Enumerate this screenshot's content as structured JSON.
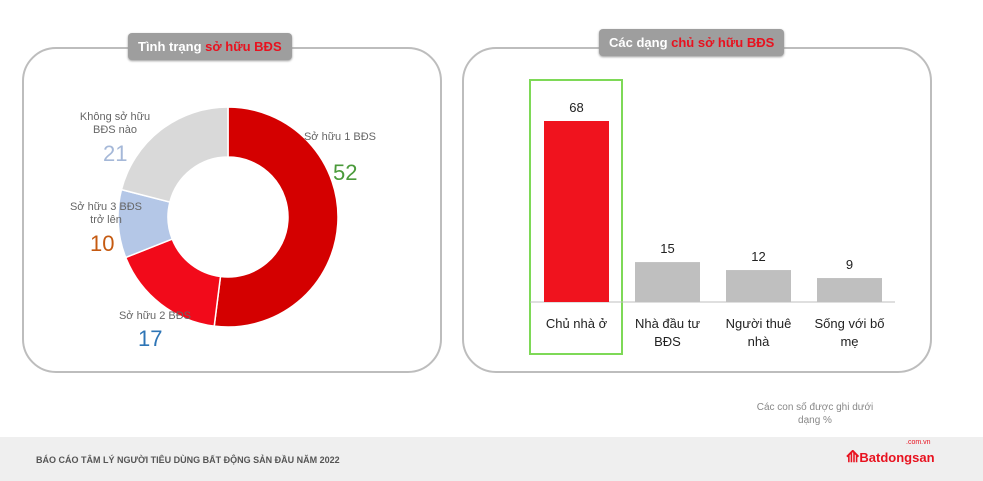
{
  "left_panel": {
    "title_prefix": "Tình trạng ",
    "title_highlight": "sở hữu BĐS"
  },
  "right_panel": {
    "title_prefix": "Các dạng ",
    "title_highlight": "chủ sở hữu BĐS"
  },
  "chart_data": [
    {
      "type": "pie",
      "variant": "donut",
      "start": "top",
      "direction": "clockwise",
      "slices": [
        {
          "label": "Sở hữu 1 BĐS",
          "value": 52,
          "color": "#d40000",
          "label_color": "#4a9a3a"
        },
        {
          "label": "Sở hữu 2 BĐS",
          "value": 17,
          "color": "#f20a1a",
          "label_color": "#2e75b6"
        },
        {
          "label": "Sở hữu 3 BĐS trở lên",
          "value": 10,
          "color": "#b4c7e7",
          "label_color": "#c55a11"
        },
        {
          "label": "Không sở hữu BĐS nào",
          "value": 21,
          "color": "#d9d9d9",
          "label_color": "#a5b8d8"
        }
      ]
    },
    {
      "type": "bar",
      "categories": [
        "Chủ nhà ở",
        "Nhà đầu tư BĐS",
        "Người thuê nhà",
        "Sống với bố mẹ"
      ],
      "values": [
        68,
        15,
        12,
        9
      ],
      "colors": [
        "#f0131e",
        "#bfbfbf",
        "#bfbfbf",
        "#bfbfbf"
      ],
      "highlighted_category": "Chủ nhà ở",
      "highlight_color": "#7ed957",
      "ylim": [
        0,
        70
      ]
    }
  ],
  "note": "Các con số được ghi dưới dạng %",
  "footer": {
    "text": "BÁO CÁO TÂM LÝ NGƯỜI TIÊU DÙNG BẤT ĐỘNG SẢN ĐẦU NĂM 2022",
    "logo": "Batdongsan",
    "logo_suffix": ".com.vn"
  }
}
